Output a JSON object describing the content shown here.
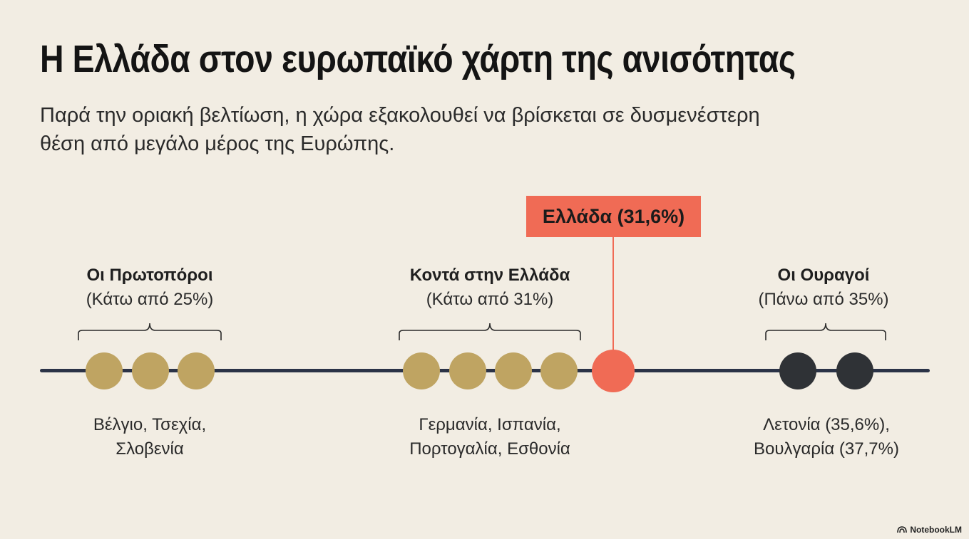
{
  "title": "Η Ελλάδα στον ευρωπαϊκό χάρτη της ανισότητας",
  "subtitle_line1": "Παρά την οριακή βελτίωση, η χώρα εξακολουθεί να βρίσκεται σε δυσμενέστερη",
  "subtitle_line2": "θέση από μεγάλο μέρος της Ευρώπης.",
  "marker": {
    "label": "Ελλάδα (31,6%)",
    "color": "#f06b55"
  },
  "groups": [
    {
      "name": "Οι Πρωτοπόροι",
      "range": "(Κάτω από 25%)",
      "countries_line1": "Βέλγιο, Τσεχία,",
      "countries_line2": "Σλοβενία",
      "dot_color": "#bfa462",
      "dot_count": 3
    },
    {
      "name": "Κοντά στην Ελλάδα",
      "range": "(Κάτω από 31%)",
      "countries_line1": "Γερμανία, Ισπανία,",
      "countries_line2": "Πορτογαλία, Εσθονία",
      "dot_color": "#bfa462",
      "dot_count": 4
    },
    {
      "name": "Οι Ουραγοί",
      "range": "(Πάνω από 35%)",
      "countries_line1": "Λετονία (35,6%),",
      "countries_line2": "Βουλγαρία (37,7%)",
      "dot_color": "#2f3236",
      "dot_count": 2
    }
  ],
  "axis_color": "#2b3347",
  "logo_text": "NotebookLM"
}
